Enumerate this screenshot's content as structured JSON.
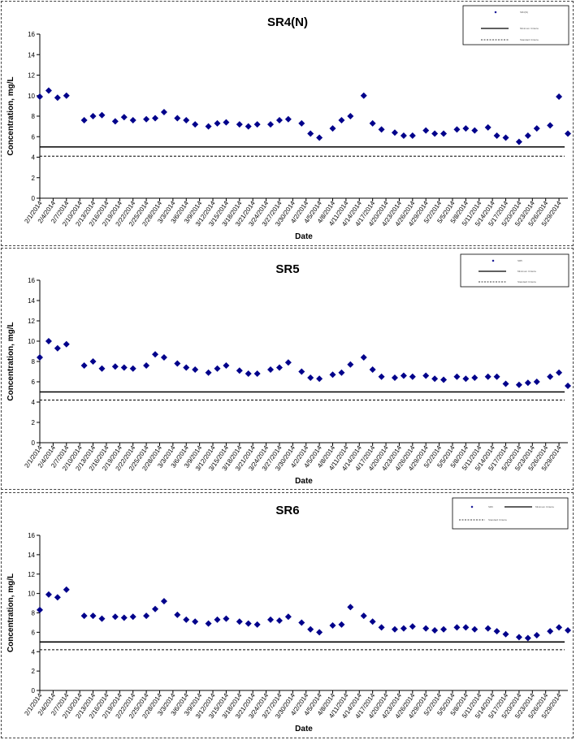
{
  "chart_data": [
    {
      "type": "scatter",
      "title": "SR4(N)",
      "xlabel": "Date",
      "ylabel": "Concentration, mg/L",
      "ylim": [
        0,
        16
      ],
      "yticks": [
        "0",
        "2",
        "4",
        "6",
        "8",
        "10",
        "12",
        "14",
        "16"
      ],
      "xticks": [
        "2/1/2014",
        "2/4/2014",
        "2/7/2014",
        "2/10/2014",
        "2/13/2014",
        "2/16/2014",
        "2/19/2014",
        "2/22/2014",
        "2/25/2014",
        "2/28/2014",
        "3/3/2014",
        "3/6/2014",
        "3/9/2014",
        "3/12/2014",
        "3/15/2014",
        "3/18/2014",
        "3/21/2014",
        "3/24/2014",
        "3/27/2014",
        "3/30/2014",
        "4/2/2014",
        "4/5/2014",
        "4/8/2014",
        "4/11/2014",
        "4/14/2014",
        "4/17/2014",
        "4/20/2014",
        "4/23/2014",
        "4/26/2014",
        "4/29/2014",
        "5/2/2014",
        "5/5/2014",
        "5/8/2014",
        "5/11/2014",
        "5/14/2014",
        "5/17/2014",
        "5/20/2014",
        "5/23/2014",
        "5/26/2014",
        "5/29/2014"
      ],
      "legend": [
        "SR4(N)",
        "Minimum Criteria",
        "Standard Criteria"
      ],
      "legend_position": "top-right",
      "lines": [
        5.0,
        4.1
      ],
      "points": [
        [
          "2/1/2014",
          9.9
        ],
        [
          "2/3/2014",
          10.5
        ],
        [
          "2/5/2014",
          9.8
        ],
        [
          "2/7/2014",
          10.0
        ],
        [
          "2/11/2014",
          7.6
        ],
        [
          "2/13/2014",
          8.0
        ],
        [
          "2/15/2014",
          8.1
        ],
        [
          "2/18/2014",
          7.5
        ],
        [
          "2/20/2014",
          7.9
        ],
        [
          "2/22/2014",
          7.6
        ],
        [
          "2/25/2014",
          7.7
        ],
        [
          "2/27/2014",
          7.8
        ],
        [
          "3/1/2014",
          8.4
        ],
        [
          "3/4/2014",
          7.8
        ],
        [
          "3/6/2014",
          7.6
        ],
        [
          "3/8/2014",
          7.2
        ],
        [
          "3/11/2014",
          7.0
        ],
        [
          "3/13/2014",
          7.3
        ],
        [
          "3/15/2014",
          7.4
        ],
        [
          "3/18/2014",
          7.2
        ],
        [
          "3/20/2014",
          7.0
        ],
        [
          "3/22/2014",
          7.2
        ],
        [
          "3/25/2014",
          7.2
        ],
        [
          "3/27/2014",
          7.6
        ],
        [
          "3/29/2014",
          7.7
        ],
        [
          "4/1/2014",
          7.3
        ],
        [
          "4/3/2014",
          6.3
        ],
        [
          "4/5/2014",
          5.9
        ],
        [
          "4/8/2014",
          6.8
        ],
        [
          "4/10/2014",
          7.6
        ],
        [
          "4/12/2014",
          8.0
        ],
        [
          "4/15/2014",
          10.0
        ],
        [
          "4/17/2014",
          7.3
        ],
        [
          "4/19/2014",
          6.7
        ],
        [
          "4/22/2014",
          6.4
        ],
        [
          "4/24/2014",
          6.1
        ],
        [
          "4/26/2014",
          6.1
        ],
        [
          "4/29/2014",
          6.6
        ],
        [
          "5/1/2014",
          6.3
        ],
        [
          "5/3/2014",
          6.3
        ],
        [
          "5/6/2014",
          6.7
        ],
        [
          "5/8/2014",
          6.8
        ],
        [
          "5/10/2014",
          6.6
        ],
        [
          "5/13/2014",
          6.9
        ],
        [
          "5/15/2014",
          6.1
        ],
        [
          "5/17/2014",
          5.9
        ],
        [
          "5/20/2014",
          5.5
        ],
        [
          "5/22/2014",
          6.1
        ],
        [
          "5/24/2014",
          6.8
        ],
        [
          "5/27/2014",
          7.1
        ],
        [
          "5/29/2014",
          9.9
        ],
        [
          "5/31/2014",
          6.3
        ]
      ]
    },
    {
      "type": "scatter",
      "title": "SR5",
      "xlabel": "Date",
      "ylabel": "Concentration, mg/L",
      "ylim": [
        0,
        16
      ],
      "yticks": [
        "0",
        "2",
        "4",
        "6",
        "8",
        "10",
        "12",
        "14",
        "16"
      ],
      "xticks": [
        "2/1/2014",
        "2/4/2014",
        "2/7/2014",
        "2/10/2014",
        "2/13/2014",
        "2/16/2014",
        "2/19/2014",
        "2/22/2014",
        "2/25/2014",
        "2/28/2014",
        "3/3/2014",
        "3/6/2014",
        "3/9/2014",
        "3/12/2014",
        "3/15/2014",
        "3/18/2014",
        "3/21/2014",
        "3/24/2014",
        "3/27/2014",
        "3/30/2014",
        "4/2/2014",
        "4/5/2014",
        "4/8/2014",
        "4/11/2014",
        "4/14/2014",
        "4/17/2014",
        "4/20/2014",
        "4/23/2014",
        "4/26/2014",
        "4/29/2014",
        "5/2/2014",
        "5/5/2014",
        "5/8/2014",
        "5/11/2014",
        "5/14/2014",
        "5/17/2014",
        "5/20/2014",
        "5/23/2014",
        "5/26/2014",
        "5/29/2014"
      ],
      "legend": [
        "SR5",
        "Minimum Criteria",
        "Standard Criteria"
      ],
      "legend_position": "top-right",
      "lines": [
        5.0,
        4.2
      ],
      "points": [
        [
          "2/1/2014",
          8.4
        ],
        [
          "2/3/2014",
          10.0
        ],
        [
          "2/5/2014",
          9.3
        ],
        [
          "2/7/2014",
          9.7
        ],
        [
          "2/11/2014",
          7.6
        ],
        [
          "2/13/2014",
          8.0
        ],
        [
          "2/15/2014",
          7.3
        ],
        [
          "2/18/2014",
          7.5
        ],
        [
          "2/20/2014",
          7.4
        ],
        [
          "2/22/2014",
          7.3
        ],
        [
          "2/25/2014",
          7.6
        ],
        [
          "2/27/2014",
          8.7
        ],
        [
          "3/1/2014",
          8.4
        ],
        [
          "3/4/2014",
          7.8
        ],
        [
          "3/6/2014",
          7.4
        ],
        [
          "3/8/2014",
          7.2
        ],
        [
          "3/11/2014",
          6.9
        ],
        [
          "3/13/2014",
          7.3
        ],
        [
          "3/15/2014",
          7.6
        ],
        [
          "3/18/2014",
          7.1
        ],
        [
          "3/20/2014",
          6.8
        ],
        [
          "3/22/2014",
          6.8
        ],
        [
          "3/25/2014",
          7.2
        ],
        [
          "3/27/2014",
          7.4
        ],
        [
          "3/29/2014",
          7.9
        ],
        [
          "4/1/2014",
          7.0
        ],
        [
          "4/3/2014",
          6.4
        ],
        [
          "4/5/2014",
          6.3
        ],
        [
          "4/8/2014",
          6.7
        ],
        [
          "4/10/2014",
          6.9
        ],
        [
          "4/12/2014",
          7.7
        ],
        [
          "4/15/2014",
          8.4
        ],
        [
          "4/17/2014",
          7.2
        ],
        [
          "4/19/2014",
          6.5
        ],
        [
          "4/22/2014",
          6.4
        ],
        [
          "4/24/2014",
          6.6
        ],
        [
          "4/26/2014",
          6.5
        ],
        [
          "4/29/2014",
          6.6
        ],
        [
          "5/1/2014",
          6.3
        ],
        [
          "5/3/2014",
          6.2
        ],
        [
          "5/6/2014",
          6.5
        ],
        [
          "5/8/2014",
          6.3
        ],
        [
          "5/10/2014",
          6.4
        ],
        [
          "5/13/2014",
          6.5
        ],
        [
          "5/15/2014",
          6.5
        ],
        [
          "5/17/2014",
          5.8
        ],
        [
          "5/20/2014",
          5.7
        ],
        [
          "5/22/2014",
          5.9
        ],
        [
          "5/24/2014",
          6.0
        ],
        [
          "5/27/2014",
          6.5
        ],
        [
          "5/29/2014",
          6.9
        ],
        [
          "5/31/2014",
          5.6
        ]
      ]
    },
    {
      "type": "scatter",
      "title": "SR6",
      "xlabel": "Date",
      "ylabel": "Concentration, mg/L",
      "ylim": [
        0,
        16
      ],
      "yticks": [
        "0",
        "2",
        "4",
        "6",
        "8",
        "10",
        "12",
        "14",
        "16"
      ],
      "xticks": [
        "2/1/2014",
        "2/4/2014",
        "2/7/2014",
        "2/10/2014",
        "2/13/2014",
        "2/16/2014",
        "2/19/2014",
        "2/22/2014",
        "2/25/2014",
        "2/28/2014",
        "3/3/2014",
        "3/6/2014",
        "3/9/2014",
        "3/12/2014",
        "3/15/2014",
        "3/18/2014",
        "3/21/2014",
        "3/24/2014",
        "3/27/2014",
        "3/30/2014",
        "4/2/2014",
        "4/5/2014",
        "4/8/2014",
        "4/11/2014",
        "4/14/2014",
        "4/17/2014",
        "4/20/2014",
        "4/23/2014",
        "4/26/2014",
        "4/29/2014",
        "5/2/2014",
        "5/5/2014",
        "5/8/2014",
        "5/11/2014",
        "5/14/2014",
        "5/17/2014",
        "5/20/2014",
        "5/23/2014",
        "5/26/2014",
        "5/29/2014"
      ],
      "legend": [
        "SR6",
        "Minimum Criteria",
        "Standard Criteria"
      ],
      "legend_position": "top-right",
      "lines": [
        5.0,
        4.2
      ],
      "points": [
        [
          "2/1/2014",
          8.3
        ],
        [
          "2/3/2014",
          9.9
        ],
        [
          "2/5/2014",
          9.6
        ],
        [
          "2/7/2014",
          10.4
        ],
        [
          "2/11/2014",
          7.7
        ],
        [
          "2/13/2014",
          7.7
        ],
        [
          "2/15/2014",
          7.4
        ],
        [
          "2/18/2014",
          7.6
        ],
        [
          "2/20/2014",
          7.5
        ],
        [
          "2/22/2014",
          7.6
        ],
        [
          "2/25/2014",
          7.7
        ],
        [
          "2/27/2014",
          8.4
        ],
        [
          "3/1/2014",
          9.2
        ],
        [
          "3/4/2014",
          7.8
        ],
        [
          "3/6/2014",
          7.3
        ],
        [
          "3/8/2014",
          7.1
        ],
        [
          "3/11/2014",
          6.9
        ],
        [
          "3/13/2014",
          7.3
        ],
        [
          "3/15/2014",
          7.4
        ],
        [
          "3/18/2014",
          7.1
        ],
        [
          "3/20/2014",
          6.9
        ],
        [
          "3/22/2014",
          6.8
        ],
        [
          "3/25/2014",
          7.3
        ],
        [
          "3/27/2014",
          7.2
        ],
        [
          "3/29/2014",
          7.6
        ],
        [
          "4/1/2014",
          7.0
        ],
        [
          "4/3/2014",
          6.3
        ],
        [
          "4/5/2014",
          6.0
        ],
        [
          "4/8/2014",
          6.7
        ],
        [
          "4/10/2014",
          6.8
        ],
        [
          "4/12/2014",
          8.6
        ],
        [
          "4/15/2014",
          7.7
        ],
        [
          "4/17/2014",
          7.1
        ],
        [
          "4/19/2014",
          6.5
        ],
        [
          "4/22/2014",
          6.3
        ],
        [
          "4/24/2014",
          6.4
        ],
        [
          "4/26/2014",
          6.6
        ],
        [
          "4/29/2014",
          6.4
        ],
        [
          "5/1/2014",
          6.2
        ],
        [
          "5/3/2014",
          6.3
        ],
        [
          "5/6/2014",
          6.5
        ],
        [
          "5/8/2014",
          6.5
        ],
        [
          "5/10/2014",
          6.3
        ],
        [
          "5/13/2014",
          6.4
        ],
        [
          "5/15/2014",
          6.1
        ],
        [
          "5/17/2014",
          5.8
        ],
        [
          "5/20/2014",
          5.5
        ],
        [
          "5/22/2014",
          5.4
        ],
        [
          "5/24/2014",
          5.7
        ],
        [
          "5/27/2014",
          6.1
        ],
        [
          "5/29/2014",
          6.5
        ],
        [
          "5/31/2014",
          6.2
        ]
      ]
    }
  ],
  "colors": {
    "marker": "#00008B",
    "line": "#000000"
  }
}
